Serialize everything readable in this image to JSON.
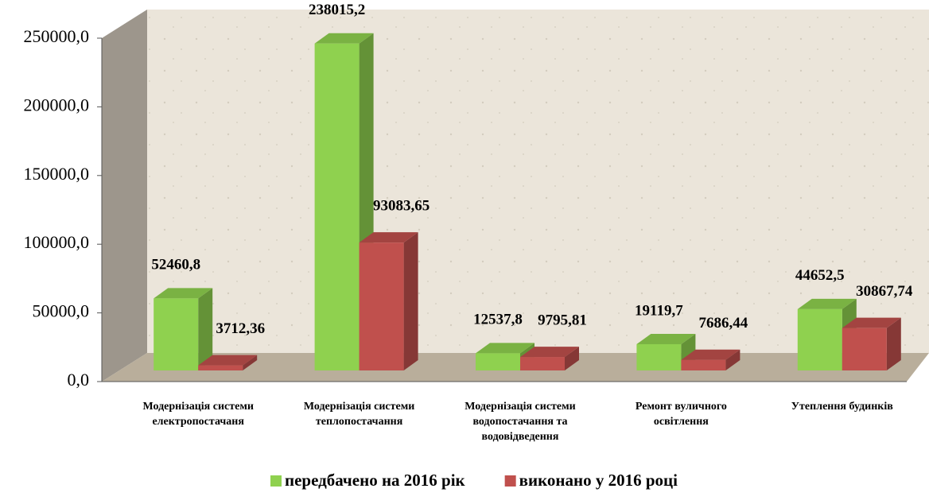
{
  "chart_data": {
    "type": "bar3d",
    "categories": [
      [
        "Модернізація системи",
        "електропостачаня"
      ],
      [
        "Модернізація системи",
        "теплопостачання"
      ],
      [
        "Модернізація системи",
        "водопостачання та",
        "водовідведення"
      ],
      [
        "Ремонт вуличного",
        "освітлення"
      ],
      [
        "Утеплення будинків"
      ]
    ],
    "series": [
      {
        "name": "передбачено на 2016 рік",
        "color": "#8fd14f",
        "values": [
          52460.8,
          238015.2,
          12537.8,
          19119.7,
          44652.5
        ],
        "value_labels": [
          "52460,8",
          "238015,2",
          "12537,8",
          "19119,7",
          "44652,5"
        ]
      },
      {
        "name": "виконано у 2016 році",
        "color": "#c0504d",
        "values": [
          3712.36,
          93083.65,
          9795.81,
          7686.44,
          30867.74
        ],
        "value_labels": [
          "3712,36",
          "93083,65",
          "9795,81",
          "7686,44",
          "30867,74"
        ]
      }
    ],
    "ylim": [
      0,
      250000
    ],
    "yticks": [
      {
        "value": 0,
        "label": "0,0"
      },
      {
        "value": 50000,
        "label": "50000,0"
      },
      {
        "value": 100000,
        "label": "100000,0"
      },
      {
        "value": 150000,
        "label": "150000,0"
      },
      {
        "value": 200000,
        "label": "200000,0"
      },
      {
        "value": 250000,
        "label": "250000,0"
      }
    ]
  }
}
